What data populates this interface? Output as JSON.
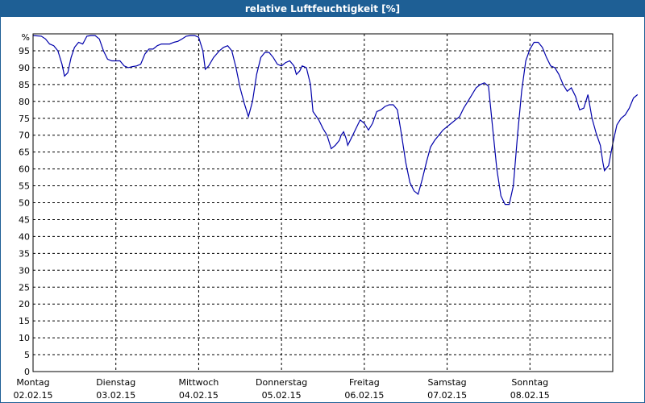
{
  "window": {
    "title": "relative Luftfeuchtigkeit [%]"
  },
  "chart_data": {
    "type": "line",
    "title": "relative Luftfeuchtigkeit [%]",
    "y_unit_label": "%",
    "ylim": [
      0,
      100
    ],
    "yticks": [
      0,
      5,
      10,
      15,
      20,
      25,
      30,
      35,
      40,
      45,
      50,
      55,
      60,
      65,
      70,
      75,
      80,
      85,
      90,
      95
    ],
    "xlim": [
      0,
      7
    ],
    "x_unit": "days since Montag 02.02.15 00:00",
    "xticks": [
      {
        "day": "Montag",
        "date": "02.02.15"
      },
      {
        "day": "Dienstag",
        "date": "03.02.15"
      },
      {
        "day": "Mittwoch",
        "date": "04.02.15"
      },
      {
        "day": "Donnerstag",
        "date": "05.02.15"
      },
      {
        "day": "Freitag",
        "date": "06.02.15"
      },
      {
        "day": "Samstag",
        "date": "07.02.15"
      },
      {
        "day": "Sonntag",
        "date": "08.02.15"
      }
    ],
    "grid": true,
    "line_color": "#0000aa",
    "series": [
      {
        "name": "",
        "points": [
          [
            0.0,
            99.5
          ],
          [
            0.1,
            99.3
          ],
          [
            0.15,
            98.5
          ],
          [
            0.2,
            97.0
          ],
          [
            0.25,
            96.5
          ],
          [
            0.3,
            95.0
          ],
          [
            0.35,
            91.0
          ],
          [
            0.38,
            87.5
          ],
          [
            0.42,
            88.5
          ],
          [
            0.46,
            93.0
          ],
          [
            0.5,
            96.0
          ],
          [
            0.55,
            97.5
          ],
          [
            0.6,
            97.0
          ],
          [
            0.65,
            99.3
          ],
          [
            0.7,
            99.5
          ],
          [
            0.75,
            99.5
          ],
          [
            0.8,
            98.5
          ],
          [
            0.85,
            95.0
          ],
          [
            0.9,
            92.5
          ],
          [
            0.95,
            92.0
          ],
          [
            1.0,
            92.0
          ],
          [
            1.05,
            92.0
          ],
          [
            1.1,
            90.5
          ],
          [
            1.15,
            90.0
          ],
          [
            1.2,
            90.3
          ],
          [
            1.25,
            90.5
          ],
          [
            1.3,
            91.0
          ],
          [
            1.35,
            94.0
          ],
          [
            1.4,
            95.5
          ],
          [
            1.45,
            95.5
          ],
          [
            1.5,
            96.5
          ],
          [
            1.55,
            97.0
          ],
          [
            1.6,
            97.0
          ],
          [
            1.65,
            97.0
          ],
          [
            1.7,
            97.5
          ],
          [
            1.75,
            97.8
          ],
          [
            1.8,
            98.5
          ],
          [
            1.85,
            99.3
          ],
          [
            1.9,
            99.5
          ],
          [
            1.95,
            99.5
          ],
          [
            2.0,
            99.0
          ],
          [
            2.05,
            95.0
          ],
          [
            2.08,
            89.5
          ],
          [
            2.12,
            90.5
          ],
          [
            2.18,
            93.0
          ],
          [
            2.25,
            95.0
          ],
          [
            2.3,
            96.0
          ],
          [
            2.35,
            96.5
          ],
          [
            2.4,
            95.0
          ],
          [
            2.45,
            90.0
          ],
          [
            2.5,
            84.0
          ],
          [
            2.55,
            79.5
          ],
          [
            2.6,
            75.5
          ],
          [
            2.65,
            80.0
          ],
          [
            2.7,
            88.0
          ],
          [
            2.75,
            93.0
          ],
          [
            2.8,
            94.5
          ],
          [
            2.85,
            94.5
          ],
          [
            2.9,
            93.0
          ],
          [
            2.95,
            91.0
          ],
          [
            3.0,
            90.5
          ],
          [
            3.05,
            91.5
          ],
          [
            3.1,
            92.0
          ],
          [
            3.15,
            90.5
          ],
          [
            3.18,
            88.0
          ],
          [
            3.22,
            89.0
          ],
          [
            3.25,
            90.5
          ],
          [
            3.3,
            90.0
          ],
          [
            3.35,
            85.0
          ],
          [
            3.38,
            77.0
          ],
          [
            3.45,
            74.5
          ],
          [
            3.5,
            72.0
          ],
          [
            3.55,
            70.0
          ],
          [
            3.6,
            66.0
          ],
          [
            3.65,
            67.0
          ],
          [
            3.7,
            68.5
          ],
          [
            3.72,
            70.0
          ],
          [
            3.75,
            71.0
          ],
          [
            3.78,
            69.0
          ],
          [
            3.8,
            67.0
          ],
          [
            3.85,
            69.5
          ],
          [
            3.9,
            72.0
          ],
          [
            3.95,
            74.5
          ],
          [
            4.0,
            73.5
          ],
          [
            4.05,
            71.5
          ],
          [
            4.1,
            73.5
          ],
          [
            4.15,
            77.0
          ],
          [
            4.2,
            77.5
          ],
          [
            4.25,
            78.5
          ],
          [
            4.3,
            79.0
          ],
          [
            4.35,
            79.0
          ],
          [
            4.4,
            77.5
          ],
          [
            4.45,
            70.0
          ],
          [
            4.5,
            62.0
          ],
          [
            4.55,
            56.0
          ],
          [
            4.6,
            53.5
          ],
          [
            4.65,
            52.5
          ],
          [
            4.7,
            57.0
          ],
          [
            4.75,
            62.0
          ],
          [
            4.8,
            66.5
          ],
          [
            4.85,
            68.5
          ],
          [
            4.9,
            70.0
          ],
          [
            4.95,
            71.5
          ],
          [
            5.0,
            72.5
          ],
          [
            5.05,
            73.5
          ],
          [
            5.1,
            74.5
          ],
          [
            5.15,
            75.5
          ],
          [
            5.2,
            78.0
          ],
          [
            5.25,
            80.0
          ],
          [
            5.3,
            82.0
          ],
          [
            5.35,
            84.0
          ],
          [
            5.4,
            85.0
          ],
          [
            5.45,
            85.5
          ],
          [
            5.5,
            84.5
          ],
          [
            5.55,
            72.0
          ],
          [
            5.6,
            60.0
          ],
          [
            5.65,
            52.0
          ],
          [
            5.7,
            49.5
          ],
          [
            5.75,
            49.5
          ],
          [
            5.8,
            55.0
          ],
          [
            5.85,
            70.0
          ],
          [
            5.9,
            83.0
          ],
          [
            5.95,
            92.0
          ],
          [
            6.0,
            95.5
          ],
          [
            6.05,
            97.5
          ],
          [
            6.1,
            97.5
          ],
          [
            6.15,
            96.0
          ],
          [
            6.2,
            93.0
          ],
          [
            6.25,
            90.5
          ],
          [
            6.3,
            90.0
          ],
          [
            6.35,
            88.0
          ],
          [
            6.4,
            85.0
          ],
          [
            6.45,
            83.0
          ],
          [
            6.5,
            84.0
          ],
          [
            6.55,
            81.5
          ],
          [
            6.6,
            77.5
          ],
          [
            6.65,
            78.0
          ],
          [
            6.7,
            82.0
          ],
          [
            6.75,
            75.0
          ],
          [
            6.8,
            70.5
          ],
          [
            6.85,
            67.0
          ],
          [
            6.88,
            62.0
          ],
          [
            6.9,
            59.5
          ],
          [
            6.95,
            61.0
          ],
          [
            7.0,
            67.5
          ],
          [
            7.05,
            73.0
          ],
          [
            7.1,
            75.0
          ],
          [
            7.15,
            76.0
          ],
          [
            7.2,
            78.0
          ],
          [
            7.25,
            81.0
          ],
          [
            7.3,
            82.0
          ]
        ]
      }
    ]
  }
}
